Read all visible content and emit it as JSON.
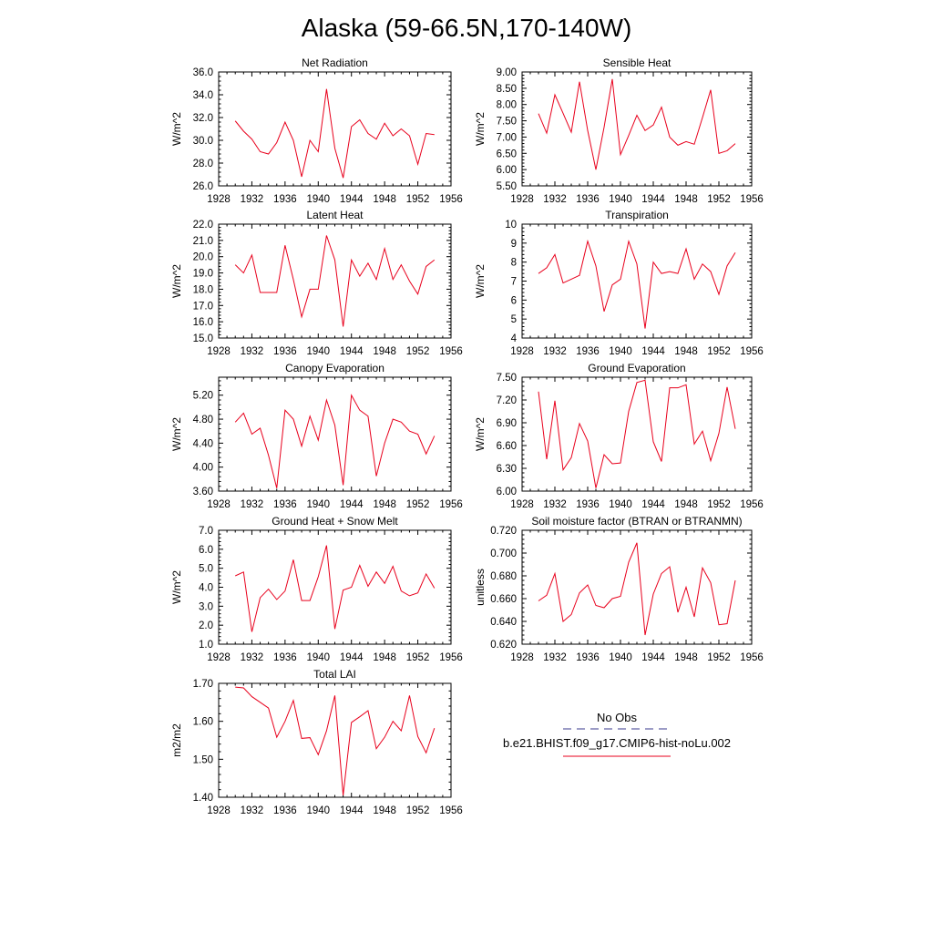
{
  "page": {
    "title": "Alaska (59-66.5N,170-140W)"
  },
  "colors": {
    "series": "#e8001c",
    "obs": "#3a3a8c",
    "axis": "#000000",
    "background": "#ffffff"
  },
  "legend": {
    "obs_label": "No Obs",
    "model_label": "b.e21.BHIST.f09_g17.CMIP6-hist-noLu.002",
    "placement": "right-bottom"
  },
  "chart_data": [
    {
      "type": "line",
      "title": "Net Radiation",
      "ylabel": "W/m^2",
      "xlim": [
        1928,
        1956
      ],
      "ylim": [
        26.0,
        36.0
      ],
      "xticks": [
        1928,
        1932,
        1936,
        1940,
        1944,
        1948,
        1952,
        1956
      ],
      "xtick_labels": [
        "1928",
        "1932",
        "1936",
        "1940",
        "1944",
        "1948",
        "1952",
        "1956"
      ],
      "yticks": [
        26.0,
        28.0,
        30.0,
        32.0,
        34.0,
        36.0
      ],
      "ytick_labels": [
        "26.0",
        "28.0",
        "30.0",
        "32.0",
        "34.0",
        "36.0"
      ],
      "x": [
        1930,
        1931,
        1932,
        1933,
        1934,
        1935,
        1936,
        1937,
        1938,
        1939,
        1940,
        1941,
        1942,
        1943,
        1944,
        1945,
        1946,
        1947,
        1948,
        1949,
        1950,
        1951,
        1952,
        1953,
        1954
      ],
      "series": [
        {
          "values": [
            31.7,
            30.8,
            30.1,
            29.0,
            28.8,
            29.8,
            31.6,
            30.0,
            26.8,
            30.0,
            29.0,
            34.5,
            29.3,
            26.7,
            31.2,
            31.8,
            30.6,
            30.1,
            31.5,
            30.4,
            31.0,
            30.4,
            27.9,
            30.6,
            30.5
          ]
        }
      ]
    },
    {
      "type": "line",
      "title": "Sensible Heat",
      "ylabel": "W/m^2",
      "xlim": [
        1928,
        1956
      ],
      "ylim": [
        5.5,
        9.0
      ],
      "xticks": [
        1928,
        1932,
        1936,
        1940,
        1944,
        1948,
        1952,
        1956
      ],
      "xtick_labels": [
        "1928",
        "1932",
        "1936",
        "1940",
        "1944",
        "1948",
        "1952",
        "1956"
      ],
      "yticks": [
        5.5,
        6.0,
        6.5,
        7.0,
        7.5,
        8.0,
        8.5,
        9.0
      ],
      "ytick_labels": [
        "5.50",
        "6.00",
        "6.50",
        "7.00",
        "7.50",
        "8.00",
        "8.50",
        "9.00"
      ],
      "x": [
        1930,
        1931,
        1932,
        1933,
        1934,
        1935,
        1936,
        1937,
        1938,
        1939,
        1940,
        1941,
        1942,
        1943,
        1944,
        1945,
        1946,
        1947,
        1948,
        1949,
        1950,
        1951,
        1952,
        1953,
        1954
      ],
      "series": [
        {
          "values": [
            7.72,
            7.12,
            8.3,
            7.73,
            7.15,
            8.7,
            7.2,
            6.0,
            7.3,
            8.78,
            6.46,
            7.05,
            7.67,
            7.2,
            7.37,
            7.92,
            7.0,
            6.75,
            6.86,
            6.78,
            7.6,
            8.45,
            6.5,
            6.58,
            6.8
          ]
        }
      ]
    },
    {
      "type": "line",
      "title": "Latent Heat",
      "ylabel": "W/m^2",
      "xlim": [
        1928,
        1956
      ],
      "ylim": [
        15.0,
        22.0
      ],
      "xticks": [
        1928,
        1932,
        1936,
        1940,
        1944,
        1948,
        1952,
        1956
      ],
      "xtick_labels": [
        "1928",
        "1932",
        "1936",
        "1940",
        "1944",
        "1948",
        "1952",
        "1956"
      ],
      "yticks": [
        15.0,
        16.0,
        17.0,
        18.0,
        19.0,
        20.0,
        21.0,
        22.0
      ],
      "ytick_labels": [
        "15.0",
        "16.0",
        "17.0",
        "18.0",
        "19.0",
        "20.0",
        "21.0",
        "22.0"
      ],
      "x": [
        1930,
        1931,
        1932,
        1933,
        1934,
        1935,
        1936,
        1937,
        1938,
        1939,
        1940,
        1941,
        1942,
        1943,
        1944,
        1945,
        1946,
        1947,
        1948,
        1949,
        1950,
        1951,
        1952,
        1953,
        1954
      ],
      "series": [
        {
          "values": [
            19.5,
            19.0,
            20.1,
            17.8,
            17.8,
            17.8,
            20.7,
            18.6,
            16.3,
            18.0,
            18.0,
            21.3,
            19.8,
            15.7,
            19.8,
            18.8,
            19.6,
            18.6,
            20.5,
            18.6,
            19.5,
            18.5,
            17.7,
            19.4,
            19.8
          ]
        }
      ]
    },
    {
      "type": "line",
      "title": "Transpiration",
      "ylabel": "W/m^2",
      "xlim": [
        1928,
        1956
      ],
      "ylim": [
        4,
        10
      ],
      "xticks": [
        1928,
        1932,
        1936,
        1940,
        1944,
        1948,
        1952,
        1956
      ],
      "xtick_labels": [
        "1928",
        "1932",
        "1936",
        "1940",
        "1944",
        "1948",
        "1952",
        "1956"
      ],
      "yticks": [
        4,
        5,
        6,
        7,
        8,
        9,
        10
      ],
      "ytick_labels": [
        "4",
        "5",
        "6",
        "7",
        "8",
        "9",
        "10"
      ],
      "x": [
        1930,
        1931,
        1932,
        1933,
        1934,
        1935,
        1936,
        1937,
        1938,
        1939,
        1940,
        1941,
        1942,
        1943,
        1944,
        1945,
        1946,
        1947,
        1948,
        1949,
        1950,
        1951,
        1952,
        1953,
        1954
      ],
      "series": [
        {
          "values": [
            7.4,
            7.7,
            8.4,
            6.9,
            7.1,
            7.3,
            9.1,
            7.8,
            5.4,
            6.8,
            7.1,
            9.1,
            7.9,
            4.5,
            8.0,
            7.4,
            7.5,
            7.4,
            8.7,
            7.1,
            7.9,
            7.5,
            6.3,
            7.8,
            8.5
          ]
        }
      ]
    },
    {
      "type": "line",
      "title": "Canopy Evaporation",
      "ylabel": "W/m^2",
      "xlim": [
        1928,
        1956
      ],
      "ylim": [
        3.6,
        5.5
      ],
      "xticks": [
        1928,
        1932,
        1936,
        1940,
        1944,
        1948,
        1952,
        1956
      ],
      "xtick_labels": [
        "1928",
        "1932",
        "1936",
        "1940",
        "1944",
        "1948",
        "1952",
        "1956"
      ],
      "yticks": [
        3.6,
        4.0,
        4.4,
        4.8,
        5.2
      ],
      "ytick_labels": [
        "3.60",
        "4.00",
        "4.40",
        "4.80",
        "5.20"
      ],
      "x": [
        1930,
        1931,
        1932,
        1933,
        1934,
        1935,
        1936,
        1937,
        1938,
        1939,
        1940,
        1941,
        1942,
        1943,
        1944,
        1945,
        1946,
        1947,
        1948,
        1949,
        1950,
        1951,
        1952,
        1953,
        1954
      ],
      "series": [
        {
          "values": [
            4.75,
            4.9,
            4.55,
            4.65,
            4.2,
            3.65,
            4.95,
            4.8,
            4.35,
            4.85,
            4.45,
            5.12,
            4.7,
            3.7,
            5.2,
            4.95,
            4.85,
            3.85,
            4.4,
            4.8,
            4.75,
            4.6,
            4.55,
            4.22,
            4.52
          ]
        }
      ]
    },
    {
      "type": "line",
      "title": "Ground Evaporation",
      "ylabel": "W/m^2",
      "xlim": [
        1928,
        1956
      ],
      "ylim": [
        6.0,
        7.5
      ],
      "xticks": [
        1928,
        1932,
        1936,
        1940,
        1944,
        1948,
        1952,
        1956
      ],
      "xtick_labels": [
        "1928",
        "1932",
        "1936",
        "1940",
        "1944",
        "1948",
        "1952",
        "1956"
      ],
      "yticks": [
        6.0,
        6.3,
        6.6,
        6.9,
        7.2,
        7.5
      ],
      "ytick_labels": [
        "6.00",
        "6.30",
        "6.60",
        "6.90",
        "7.20",
        "7.50"
      ],
      "x": [
        1930,
        1931,
        1932,
        1933,
        1934,
        1935,
        1936,
        1937,
        1938,
        1939,
        1940,
        1941,
        1942,
        1943,
        1944,
        1945,
        1946,
        1947,
        1948,
        1949,
        1950,
        1951,
        1952,
        1953,
        1954
      ],
      "series": [
        {
          "values": [
            7.31,
            6.42,
            7.19,
            6.28,
            6.44,
            6.89,
            6.66,
            6.04,
            6.48,
            6.36,
            6.37,
            7.05,
            7.43,
            7.46,
            6.65,
            6.39,
            7.36,
            7.36,
            7.4,
            6.62,
            6.79,
            6.4,
            6.76,
            7.37,
            6.82
          ]
        }
      ]
    },
    {
      "type": "line",
      "title": "Ground Heat + Snow Melt",
      "ylabel": "W/m^2",
      "xlim": [
        1928,
        1956
      ],
      "ylim": [
        1.0,
        7.0
      ],
      "xticks": [
        1928,
        1932,
        1936,
        1940,
        1944,
        1948,
        1952,
        1956
      ],
      "xtick_labels": [
        "1928",
        "1932",
        "1936",
        "1940",
        "1944",
        "1948",
        "1952",
        "1956"
      ],
      "yticks": [
        1.0,
        2.0,
        3.0,
        4.0,
        5.0,
        6.0,
        7.0
      ],
      "ytick_labels": [
        "1.0",
        "2.0",
        "3.0",
        "4.0",
        "5.0",
        "6.0",
        "7.0"
      ],
      "x": [
        1930,
        1931,
        1932,
        1933,
        1934,
        1935,
        1936,
        1937,
        1938,
        1939,
        1940,
        1941,
        1942,
        1943,
        1944,
        1945,
        1946,
        1947,
        1948,
        1949,
        1950,
        1951,
        1952,
        1953,
        1954
      ],
      "series": [
        {
          "values": [
            4.6,
            4.8,
            1.65,
            3.45,
            3.9,
            3.35,
            3.8,
            5.45,
            3.3,
            3.3,
            4.55,
            6.2,
            1.8,
            3.85,
            4.0,
            5.15,
            4.05,
            4.8,
            4.2,
            5.1,
            3.8,
            3.55,
            3.7,
            4.7,
            3.95
          ]
        }
      ]
    },
    {
      "type": "line",
      "title": "Soil moisture factor (BTRAN or BTRANMN)",
      "ylabel": "unitless",
      "xlim": [
        1928,
        1956
      ],
      "ylim": [
        0.62,
        0.72
      ],
      "xticks": [
        1928,
        1932,
        1936,
        1940,
        1944,
        1948,
        1952,
        1956
      ],
      "xtick_labels": [
        "1928",
        "1932",
        "1936",
        "1940",
        "1944",
        "1948",
        "1952",
        "1956"
      ],
      "yticks": [
        0.62,
        0.64,
        0.66,
        0.68,
        0.7,
        0.72
      ],
      "ytick_labels": [
        "0.620",
        "0.640",
        "0.660",
        "0.680",
        "0.700",
        "0.720"
      ],
      "x": [
        1930,
        1931,
        1932,
        1933,
        1934,
        1935,
        1936,
        1937,
        1938,
        1939,
        1940,
        1941,
        1942,
        1943,
        1944,
        1945,
        1946,
        1947,
        1948,
        1949,
        1950,
        1951,
        1952,
        1953,
        1954
      ],
      "series": [
        {
          "values": [
            0.658,
            0.663,
            0.682,
            0.64,
            0.646,
            0.665,
            0.672,
            0.654,
            0.652,
            0.66,
            0.662,
            0.692,
            0.709,
            0.628,
            0.664,
            0.682,
            0.688,
            0.648,
            0.67,
            0.644,
            0.687,
            0.674,
            0.637,
            0.638,
            0.676
          ]
        }
      ]
    },
    {
      "type": "line",
      "title": "Total LAI",
      "ylabel": "m2/m2",
      "xlim": [
        1928,
        1956
      ],
      "ylim": [
        1.4,
        1.7
      ],
      "xticks": [
        1928,
        1932,
        1936,
        1940,
        1944,
        1948,
        1952,
        1956
      ],
      "xtick_labels": [
        "1928",
        "1932",
        "1936",
        "1940",
        "1944",
        "1948",
        "1952",
        "1956"
      ],
      "yticks": [
        1.4,
        1.5,
        1.6,
        1.7
      ],
      "ytick_labels": [
        "1.40",
        "1.50",
        "1.60",
        "1.70"
      ],
      "x": [
        1930,
        1931,
        1932,
        1933,
        1934,
        1935,
        1936,
        1937,
        1938,
        1939,
        1940,
        1941,
        1942,
        1943,
        1944,
        1945,
        1946,
        1947,
        1948,
        1949,
        1950,
        1951,
        1952,
        1953,
        1954
      ],
      "series": [
        {
          "values": [
            1.69,
            1.688,
            1.665,
            1.65,
            1.635,
            1.558,
            1.6,
            1.655,
            1.555,
            1.557,
            1.512,
            1.575,
            1.668,
            1.405,
            1.597,
            1.612,
            1.628,
            1.528,
            1.558,
            1.6,
            1.575,
            1.668,
            1.56,
            1.517,
            1.582
          ]
        }
      ]
    }
  ]
}
